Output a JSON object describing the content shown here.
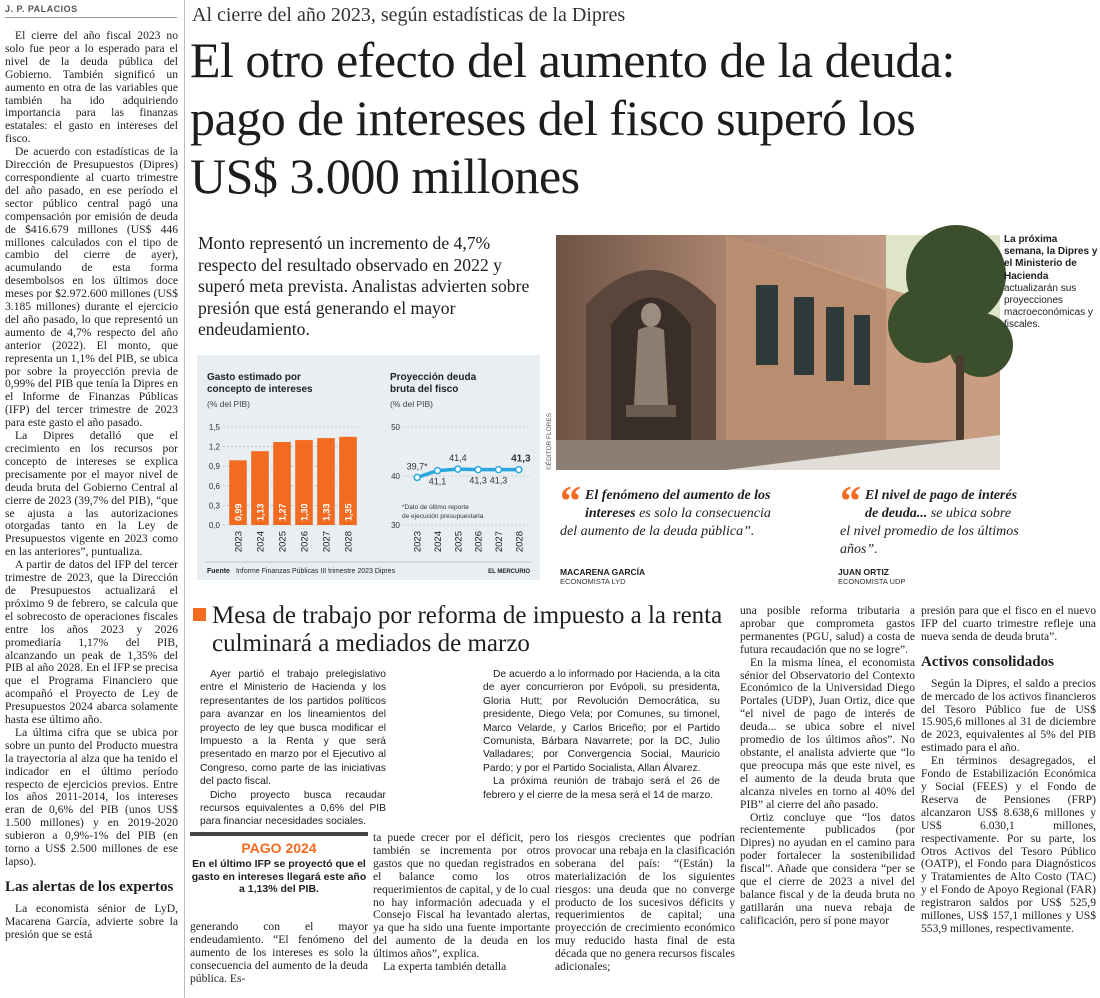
{
  "byline": "J. P. PALACIOS",
  "kicker": "Al cierre del año 2023, según estadísticas de la Dipres",
  "headline": "El otro efecto del aumento de la deuda: pago de intereses del fisco superó los US$ 3.000 millones",
  "deck": "Monto representó un incremento de 4,7% respecto del resultado observado en 2022 y superó meta prevista. Analistas advierten sobre presión que está generando el mayor endeudamiento.",
  "left_column": {
    "paragraphs": [
      "El cierre del año fiscal 2023 no solo fue peor a lo esperado para el nivel de la deuda pública del Gobierno. También significó un aumento en otra de las variables que también ha ido adquiriendo importancia para las finanzas estatales: el gasto en intereses del fisco.",
      "De acuerdo con estadísticas de la Dirección de Presupuestos (Dipres) correspondiente al cuarto trimestre del año pasado, en ese período el sector público central pagó una compensación por emisión de deuda de $416.679 millones (US$ 446 millones calculados con el tipo de cambio del cierre de ayer), acumulando de esta forma desembolsos en los últimos doce meses por $2.972.600 millones (US$ 3.185 millones) durante el ejercicio del año pasado, lo que representó un aumento de 4,7% respecto del año anterior (2022). El monto, que representa un 1,1% del PIB, se ubica por sobre la proyección previa de 0,99% del PIB que tenía la Dipres en el Informe de Finanzas Públicas (IFP) del tercer trimestre de 2023 para este gasto el año pasado.",
      "La Dipres detalló que el crecimiento en los recursos por concepto de intereses se explica precisamente por el mayor nivel de deuda bruta del Gobierno Central al cierre de 2023 (39,7% del PIB), “que se ajusta a las autorizaciones otorgadas tanto en la Ley de Presupuestos vigente en 2023 como en las anteriores”, puntualiza.",
      "A partir de datos del IFP del tercer trimestre de 2023, que la Dirección de Presupuestos actualizará el próximo 9 de febrero, se calcula que el sobrecosto de operaciones fiscales entre los años 2023 y 2026 promediaría 1,17% del PIB, alcanzando un peak de 1,35% del PIB al año 2028. En el IFP se precisa que el Programa Financiero que acompañó el Proyecto de Ley de Presupuestos 2024 abarca solamente hasta ese último año.",
      "La última cifra que se ubica por sobre un punto del Producto muestra la trayectoria al alza que ha tenido el indicador en el último período respecto de ejercicios previos. Entre los años 2011-2014, los intereses eran de 0,6% del PIB (unos US$ 1.500 millones) y en 2019-2020 subieron a 0,9%-1% del PIB (en torno a US$ 2.500 millones de ese lapso)."
    ],
    "subhead": "Las alertas de los expertos",
    "continuation": [
      "La economista sénior de LyD, Macarena García, advierte sobre la presión que se está"
    ]
  },
  "chart_data": [
    {
      "type": "bar",
      "title": "Gasto estimado por concepto de intereses",
      "subtitle": "(% del PIB)",
      "categories": [
        "2023",
        "2024",
        "2025",
        "2026",
        "2027",
        "2028"
      ],
      "values": [
        0.99,
        1.13,
        1.27,
        1.3,
        1.33,
        1.35
      ],
      "value_labels": [
        "0,99",
        "1,13",
        "1,27",
        "1,30",
        "1,33",
        "1,35"
      ],
      "color": "#f26b21",
      "ylim": [
        0,
        1.5
      ],
      "yticks": [
        {
          "value": 0,
          "label": "0,0"
        },
        {
          "value": 0.3,
          "label": "0,3"
        },
        {
          "value": 0.6,
          "label": "0,6"
        },
        {
          "value": 0.9,
          "label": "0,9"
        },
        {
          "value": 1.2,
          "label": "1,2"
        },
        {
          "value": 1.5,
          "label": "1,5"
        }
      ],
      "grid": true
    },
    {
      "type": "line",
      "title": "Proyección deuda bruta del fisco",
      "subtitle": "(% del PIB)",
      "categories": [
        "2023",
        "2024",
        "2025",
        "2026",
        "2027",
        "2028"
      ],
      "values": [
        39.7,
        41.1,
        41.4,
        41.3,
        41.3,
        41.3
      ],
      "value_labels": [
        "39,7*",
        "41,1",
        "41,4",
        "41,3",
        "41,3",
        "41,3"
      ],
      "color": "#2aa7df",
      "ylim": [
        30,
        50
      ],
      "yticks": [
        30,
        40,
        50
      ],
      "grid": true,
      "note": "*Dato de último reporte de ejecución presupuestaria"
    }
  ],
  "chart_footer": {
    "source_label": "Fuente",
    "source": "Informe Finanzas Públicas III trimestre 2023 Dipres",
    "credit": "EL MERCURIO"
  },
  "photo": {
    "credit": "©ÉDITOR FLORES",
    "caption_lead": "La próxima semana, la Dipres y el Ministerio de Hacienda",
    "caption": "actualizarán sus proyecciones macroeconómicas y fiscales."
  },
  "quotes": [
    {
      "lead": "El fenómeno del aumento de los intereses",
      "text": "es solo la consecuencia del aumento de la deuda pública”.",
      "name": "MACARENA GARCÍA",
      "role": "ECONOMISTA LYD"
    },
    {
      "lead": "El nivel de pago de interés de deuda...",
      "text": "se ubica sobre el nivel promedio de los últimos años”.",
      "name": "JUAN ORTIZ",
      "role": "ECONOMISTA UDP"
    }
  ],
  "section": {
    "headline": "Mesa de trabajo por reforma de impuesto a la renta culminará a mediados de marzo",
    "lead_columns": [
      [
        "Ayer partió el trabajo prelegislativo entre el Ministerio de Hacienda y los representantes de los partidos políticos para avanzar en los lineamientos del proyecto de ley que busca modificar el Impuesto a la Renta y que será presentado en marzo por el Ejecutivo al Congreso, como parte de las iniciativas del pacto fiscal.",
        "Dicho proyecto busca recaudar recursos equivalentes a 0,6% del PIB para financiar necesidades sociales."
      ],
      [
        "De acuerdo a lo informado por Hacienda, a la cita de ayer concurrieron por Evópoli, su presidenta, Gloria Hutt; por Revolución Democrática, su presidente, Diego Vela; por Comunes, su timonel, Marco Velarde, y Carlos Briceño; por el Partido Comunista, Bárbara Navarrete; por la DC, Julio Valladares; por Convergencia Social, Mauricio Pardo; y por el Partido Socialista, Allan Álvarez.",
        "La próxima reunión de trabajo será el 26 de febrero y el cierre de la mesa será el 14 de marzo."
      ]
    ]
  },
  "sidebar": {
    "title": "PAGO 2024",
    "text": "En el último IFP se proyectó que el gasto en intereses llegará este año a 1,13% del PIB."
  },
  "body_columns": [
    {
      "paragraphs": [
        "generando con el mayor endeudamiento. “El fenómeno del aumento de los intereses es solo la consecuencia del aumento de la deuda pública. Es-"
      ]
    },
    {
      "paragraphs": [
        "ta puede crecer por el déficit, pero también se incrementa por otros gastos que no quedan registrados en el balance como los otros requerimientos de capital, y de lo cual no hay información adecuada y el Consejo Fiscal ha levantado alertas, ya que ha sido una fuente importante del aumento de la deuda en los últimos años”, explica.",
        "La experta también detalla"
      ]
    },
    {
      "paragraphs": [
        "los riesgos crecientes que podrían provocar una rebaja en la clasificación soberana del país: “(Están) la materialización de los siguientes riesgos: una deuda que no converge producto de los sucesivos déficits y requerimientos de capital; una proyección de crecimiento económico muy reducido hasta final de esta década que no genera recursos fiscales adicionales;"
      ]
    },
    {
      "paragraphs": [
        "una posible reforma tributaria a aprobar que comprometa gastos permanentes (PGU, salud) a costa de futura recaudación que no se logre”.",
        "En la misma línea, el economista sénior del Observatorio del Contexto Económico de la Universidad Diego Portales (UDP), Juan Ortiz, dice que “el nivel de pago de interés de deuda... se ubica sobre el nivel promedio de los últimos años”. No obstante, el analista advierte que “lo que preocupa más que este nivel, es el aumento de la deuda bruta que alcanza niveles en torno al 40% del PIB” al cierre del año pasado.",
        "Ortiz concluye que “los datos recientemente publicados (por Dipres) no ayudan en el camino para poder fortalecer la sostenibilidad fiscal”. Añade que considera “per se que el cierre de 2023 a nivel del balance fiscal y de la deuda bruta no gatillarán una nueva rebaja de calificación, pero sí pone mayor"
      ]
    },
    {
      "paragraphs": [
        "presión para que el fisco en el nuevo IFP del cuarto trimestre refleje una nueva senda de deuda bruta”."
      ],
      "subhead": "Activos consolidados",
      "paragraphs_after": [
        "Según la Dipres, el saldo a precios de mercado de los activos financieros del Tesoro Público fue de US$ 15.905,6 millones al 31 de diciembre de 2023, equivalentes al 5% del PIB estimado para el año.",
        "En términos desagregados, el Fondo de Estabilización Económica y Social (FEES) y el Fondo de Reserva de Pensiones (FRP) alcanzaron US$ 8.638,6 millones y US$ 6.030,1 millones, respectivamente. Por su parte, los Otros Activos del Tesoro Público (OATP), el Fondo para Diagnósticos y Tratamientes de Alto Costo (TAC) y el Fondo de Apoyo Regional (FAR) registraron saldos por US$ 525,9 millones, US$ 157,1 millones y US$ 553,9 millones, respectivamente."
      ]
    }
  ]
}
